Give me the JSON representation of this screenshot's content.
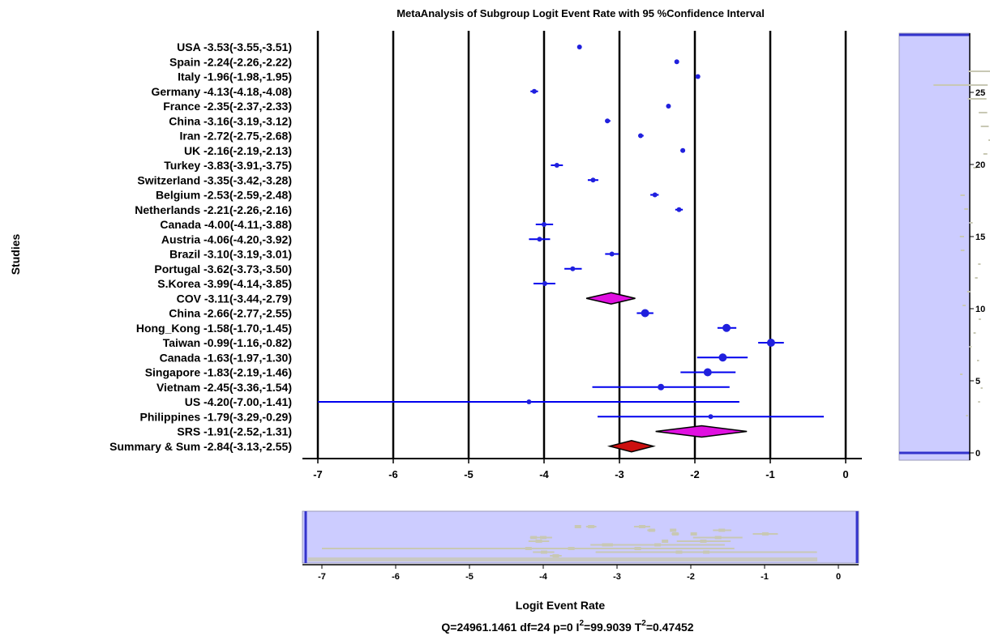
{
  "chart_data": {
    "type": "forest",
    "title": "MetaAnalysis of Subgroup Logit Event Rate with 95 %Confidence Interval",
    "ylabel": "Studies",
    "xlabel": "Logit Event Rate",
    "xlim": [
      -7.2,
      0.3
    ],
    "x_ticks": [
      "-7",
      "-6",
      "-5",
      "-4",
      "-3",
      "-2",
      "-1",
      "0"
    ],
    "x_tick_values": [
      -7,
      -6,
      -5,
      -4,
      -3,
      -2,
      -1,
      0
    ],
    "side_ticks": [
      "25",
      "20",
      "15",
      "10",
      "5",
      "0"
    ],
    "side_tick_values": [
      25,
      20,
      15,
      10,
      5,
      0
    ],
    "statistics_text": {
      "part1": "Q=24961.1461 df=24 p=0 I",
      "part2": "=99.9039 T",
      "part3": "=0.47452",
      "sup": "2"
    },
    "rows": [
      {
        "label": "USA -3.53(-3.55,-3.51)",
        "est": -3.53,
        "lo": -3.55,
        "hi": -3.51,
        "kind": "study",
        "size": 3
      },
      {
        "label": "Spain -2.24(-2.26,-2.22)",
        "est": -2.24,
        "lo": -2.26,
        "hi": -2.22,
        "kind": "study",
        "size": 3
      },
      {
        "label": "Italy -1.96(-1.98,-1.95)",
        "est": -1.96,
        "lo": -1.98,
        "hi": -1.95,
        "kind": "study",
        "size": 3
      },
      {
        "label": "Germany -4.13(-4.18,-4.08)",
        "est": -4.13,
        "lo": -4.18,
        "hi": -4.08,
        "kind": "study",
        "size": 3
      },
      {
        "label": "France -2.35(-2.37,-2.33)",
        "est": -2.35,
        "lo": -2.37,
        "hi": -2.33,
        "kind": "study",
        "size": 3
      },
      {
        "label": "China -3.16(-3.19,-3.12)",
        "est": -3.16,
        "lo": -3.19,
        "hi": -3.12,
        "kind": "study",
        "size": 3
      },
      {
        "label": "Iran -2.72(-2.75,-2.68)",
        "est": -2.72,
        "lo": -2.75,
        "hi": -2.68,
        "kind": "study",
        "size": 3
      },
      {
        "label": "UK -2.16(-2.19,-2.13)",
        "est": -2.16,
        "lo": -2.19,
        "hi": -2.13,
        "kind": "study",
        "size": 3
      },
      {
        "label": "Turkey -3.83(-3.91,-3.75)",
        "est": -3.83,
        "lo": -3.91,
        "hi": -3.75,
        "kind": "study",
        "size": 3
      },
      {
        "label": "Switzerland -3.35(-3.42,-3.28)",
        "est": -3.35,
        "lo": -3.42,
        "hi": -3.28,
        "kind": "study",
        "size": 3
      },
      {
        "label": "Belgium -2.53(-2.59,-2.48)",
        "est": -2.53,
        "lo": -2.59,
        "hi": -2.48,
        "kind": "study",
        "size": 3
      },
      {
        "label": "Netherlands -2.21(-2.26,-2.16)",
        "est": -2.21,
        "lo": -2.26,
        "hi": -2.16,
        "kind": "study",
        "size": 3
      },
      {
        "label": "Canada -4.00(-4.11,-3.88)",
        "est": -4.0,
        "lo": -4.11,
        "hi": -3.88,
        "kind": "study",
        "size": 3
      },
      {
        "label": "Austria -4.06(-4.20,-3.92)",
        "est": -4.06,
        "lo": -4.2,
        "hi": -3.92,
        "kind": "study",
        "size": 3
      },
      {
        "label": "Brazil -3.10(-3.19,-3.01)",
        "est": -3.1,
        "lo": -3.19,
        "hi": -3.01,
        "kind": "study",
        "size": 3
      },
      {
        "label": "Portugal -3.62(-3.73,-3.50)",
        "est": -3.62,
        "lo": -3.73,
        "hi": -3.5,
        "kind": "study",
        "size": 3
      },
      {
        "label": "S.Korea -3.99(-4.14,-3.85)",
        "est": -3.99,
        "lo": -4.14,
        "hi": -3.85,
        "kind": "study",
        "size": 3
      },
      {
        "label": "COV -3.11(-3.44,-2.79)",
        "est": -3.11,
        "lo": -3.44,
        "hi": -2.79,
        "kind": "subgroup"
      },
      {
        "label": "China -2.66(-2.77,-2.55)",
        "est": -2.66,
        "lo": -2.77,
        "hi": -2.55,
        "kind": "study",
        "size": 5
      },
      {
        "label": "Hong_Kong -1.58(-1.70,-1.45)",
        "est": -1.58,
        "lo": -1.7,
        "hi": -1.45,
        "kind": "study",
        "size": 5
      },
      {
        "label": "Taiwan -0.99(-1.16,-0.82)",
        "est": -0.99,
        "lo": -1.16,
        "hi": -0.82,
        "kind": "study",
        "size": 5
      },
      {
        "label": "Canada -1.63(-1.97,-1.30)",
        "est": -1.63,
        "lo": -1.97,
        "hi": -1.3,
        "kind": "study",
        "size": 5
      },
      {
        "label": "Singapore -1.83(-2.19,-1.46)",
        "est": -1.83,
        "lo": -2.19,
        "hi": -1.46,
        "kind": "study",
        "size": 5
      },
      {
        "label": "Vietnam -2.45(-3.36,-1.54)",
        "est": -2.45,
        "lo": -3.36,
        "hi": -1.54,
        "kind": "study",
        "size": 4
      },
      {
        "label": "US -4.20(-7.00,-1.41)",
        "est": -4.2,
        "lo": -7.0,
        "hi": -1.41,
        "kind": "study",
        "size": 3
      },
      {
        "label": "Philippines -1.79(-3.29,-0.29)",
        "est": -1.79,
        "lo": -3.29,
        "hi": -0.29,
        "kind": "study",
        "size": 3
      },
      {
        "label": "SRS -1.91(-2.52,-1.31)",
        "est": -1.91,
        "lo": -2.52,
        "hi": -1.31,
        "kind": "subgroup"
      },
      {
        "label": "Summary & Sum -2.84(-3.13,-2.55)",
        "est": -2.84,
        "lo": -3.13,
        "hi": -2.55,
        "kind": "summary"
      }
    ],
    "colors": {
      "ci_line": "#0000ee",
      "point": "#2020dd",
      "subgroup_fill": "#e010e0",
      "summary_fill": "#cc1010",
      "diamond_stroke": "#000000",
      "vline": "#000000",
      "panel_fill": "#ccccff",
      "panel_edge": "#3333cc",
      "panel_marks": "#c8c8b4"
    }
  }
}
